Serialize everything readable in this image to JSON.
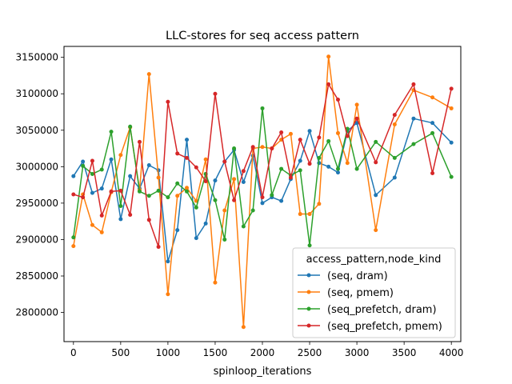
{
  "chart_data": {
    "type": "line",
    "title": "LLC-stores for seq access pattern",
    "xlabel": "spinloop_iterations",
    "ylabel": "",
    "xlim": [
      -100,
      4100
    ],
    "ylim": [
      2760000,
      3165000
    ],
    "xticks": [
      0,
      500,
      1000,
      1500,
      2000,
      2500,
      3000,
      3500,
      4000
    ],
    "yticks": [
      2800000,
      2850000,
      2900000,
      2950000,
      3000000,
      3050000,
      3100000,
      3150000
    ],
    "legend_title": "access_pattern,node_kind",
    "legend_position": "lower-right",
    "series": [
      {
        "name": "(seq, dram)",
        "color": "#1f77b4",
        "x": [
          0,
          100,
          200,
          300,
          400,
          500,
          600,
          700,
          800,
          900,
          1000,
          1100,
          1200,
          1300,
          1400,
          1500,
          1600,
          1700,
          1800,
          1900,
          2000,
          2100,
          2200,
          2300,
          2400,
          2500,
          2600,
          2700,
          2800,
          2900,
          3000,
          3200,
          3400,
          3600,
          3800,
          4000
        ],
        "y": [
          2987000,
          3007000,
          2964000,
          2970000,
          3010000,
          2928000,
          2987000,
          2970000,
          3002000,
          2995000,
          2870000,
          2913000,
          3037000,
          2902000,
          2922000,
          2981000,
          3007000,
          3023000,
          2979000,
          3015000,
          2950000,
          2958000,
          2953000,
          2983000,
          3008000,
          3049000,
          3005000,
          3000000,
          2992000,
          3049000,
          3060000,
          2961000,
          2985000,
          3066000,
          3060000,
          3033000
        ]
      },
      {
        "name": "(seq, pmem)",
        "color": "#ff7f0e",
        "x": [
          0,
          100,
          200,
          300,
          400,
          500,
          600,
          700,
          800,
          900,
          1000,
          1100,
          1200,
          1300,
          1400,
          1500,
          1600,
          1700,
          1800,
          1900,
          2000,
          2100,
          2200,
          2300,
          2400,
          2500,
          2600,
          2700,
          2800,
          2900,
          3000,
          3200,
          3400,
          3600,
          3800,
          4000
        ],
        "y": [
          2891000,
          2962000,
          2920000,
          2910000,
          2965000,
          3016000,
          3054000,
          2968000,
          3127000,
          2985000,
          2825000,
          2960000,
          2971000,
          2953000,
          3010000,
          2841000,
          2940000,
          2983000,
          2780000,
          3025000,
          3027000,
          3025000,
          3037000,
          3045000,
          2935000,
          2935000,
          2949000,
          3151000,
          3046000,
          3005000,
          3085000,
          2913000,
          3058000,
          3105000,
          3095000,
          3080000
        ]
      },
      {
        "name": "(seq_prefetch, dram)",
        "color": "#2ca02c",
        "x": [
          0,
          100,
          200,
          300,
          400,
          500,
          600,
          700,
          800,
          900,
          1000,
          1100,
          1200,
          1300,
          1400,
          1500,
          1600,
          1700,
          1800,
          1900,
          2000,
          2100,
          2200,
          2300,
          2400,
          2500,
          2600,
          2700,
          2800,
          2900,
          3000,
          3200,
          3400,
          3600,
          3800,
          4000
        ],
        "y": [
          2903000,
          3001000,
          2990000,
          2996000,
          3048000,
          2946000,
          3055000,
          2966000,
          2960000,
          2967000,
          2958000,
          2977000,
          2966000,
          2944000,
          2990000,
          2954000,
          2900000,
          3025000,
          2918000,
          2940000,
          3080000,
          2961000,
          2997000,
          2988000,
          2995000,
          2892000,
          3012000,
          3035000,
          2997000,
          3052000,
          2997000,
          3034000,
          3012000,
          3031000,
          3046000,
          2986000
        ]
      },
      {
        "name": "(seq_prefetch, pmem)",
        "color": "#d62728",
        "x": [
          0,
          100,
          200,
          300,
          400,
          500,
          600,
          700,
          800,
          900,
          1000,
          1100,
          1200,
          1300,
          1400,
          1500,
          1600,
          1700,
          1800,
          1900,
          2000,
          2100,
          2200,
          2300,
          2400,
          2500,
          2600,
          2700,
          2800,
          2900,
          3000,
          3200,
          3400,
          3600,
          3800,
          4000
        ],
        "y": [
          2962000,
          2958000,
          3008000,
          2933000,
          2966000,
          2967000,
          2934000,
          3034000,
          2927000,
          2890000,
          3089000,
          3018000,
          3012000,
          2999000,
          2980000,
          3100000,
          3007000,
          2954000,
          2994000,
          3027000,
          2958000,
          3025000,
          3047000,
          2985000,
          3037000,
          3004000,
          3040000,
          3113000,
          3092000,
          3042000,
          3066000,
          3006000,
          3071000,
          3113000,
          2991000,
          3107000
        ]
      }
    ]
  }
}
